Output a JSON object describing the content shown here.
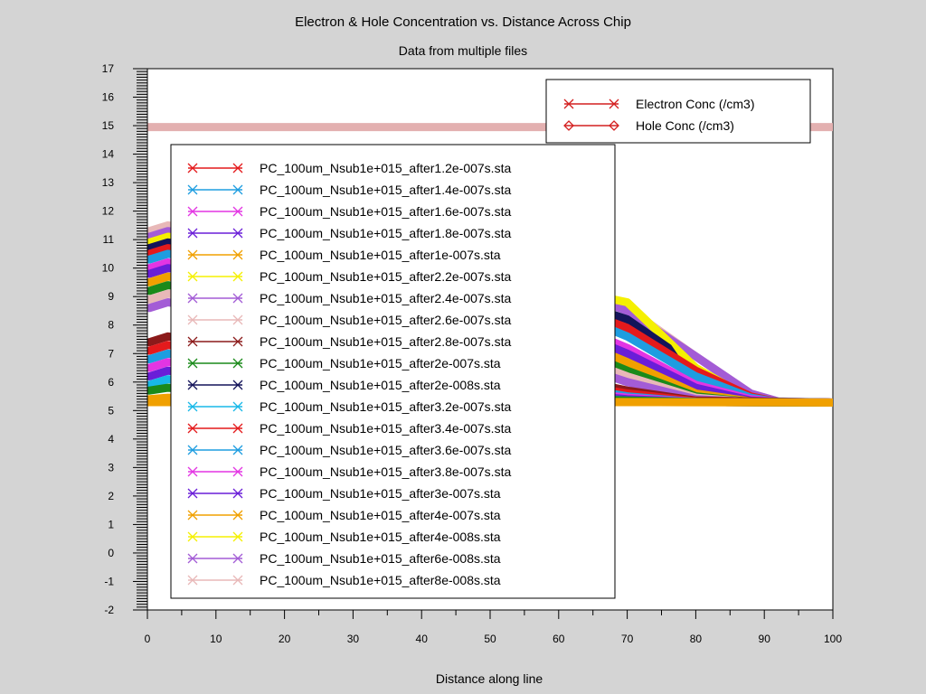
{
  "chart_data": {
    "type": "line",
    "title": "Electron & Hole Concentration vs. Distance Across Chip",
    "subtitle": "Data from multiple files",
    "xlabel": "Distance along line",
    "ylabel": "",
    "xlim": [
      0,
      100
    ],
    "ylim": [
      -2,
      17
    ],
    "x_ticks": [
      "0",
      "10",
      "20",
      "30",
      "40",
      "50",
      "60",
      "70",
      "80",
      "90",
      "100"
    ],
    "y_ticks": [
      "-2",
      "-1",
      "0",
      "1",
      "2",
      "3",
      "4",
      "5",
      "6",
      "7",
      "8",
      "9",
      "10",
      "11",
      "12",
      "13",
      "14",
      "15",
      "16",
      "17"
    ],
    "grid": false,
    "hole_level": 14.95,
    "background_level": 5.28,
    "marker_legend": {
      "placement": "top-right",
      "items": [
        {
          "label": "Electron Conc (/cm3)",
          "marker": "x",
          "color": "#d42020"
        },
        {
          "label": "Hole Conc (/cm3)",
          "marker": "diamond",
          "color": "#d42020"
        }
      ]
    },
    "file_legend": {
      "placement": "center-left",
      "items": [
        {
          "label": "PC_100um_Nsub1e+015_after1.2e-007s.sta",
          "color": "#e41a1c"
        },
        {
          "label": "PC_100um_Nsub1e+015_after1.4e-007s.sta",
          "color": "#1e9de0"
        },
        {
          "label": "PC_100um_Nsub1e+015_after1.6e-007s.sta",
          "color": "#e335e3"
        },
        {
          "label": "PC_100um_Nsub1e+015_after1.8e-007s.sta",
          "color": "#6a1ed8"
        },
        {
          "label": "PC_100um_Nsub1e+015_after1e-007s.sta",
          "color": "#f0a000"
        },
        {
          "label": "PC_100um_Nsub1e+015_after2.2e-007s.sta",
          "color": "#f5f000"
        },
        {
          "label": "PC_100um_Nsub1e+015_after2.4e-007s.sta",
          "color": "#a35cd6"
        },
        {
          "label": "PC_100um_Nsub1e+015_after2.6e-007s.sta",
          "color": "#e8b8b8"
        },
        {
          "label": "PC_100um_Nsub1e+015_after2.8e-007s.sta",
          "color": "#8b1a1a"
        },
        {
          "label": "PC_100um_Nsub1e+015_after2e-007s.sta",
          "color": "#1a8a1a"
        },
        {
          "label": "PC_100um_Nsub1e+015_after2e-008s.sta",
          "color": "#14145a"
        },
        {
          "label": "PC_100um_Nsub1e+015_after3.2e-007s.sta",
          "color": "#18b8e8"
        },
        {
          "label": "PC_100um_Nsub1e+015_after3.4e-007s.sta",
          "color": "#e41a1c"
        },
        {
          "label": "PC_100um_Nsub1e+015_after3.6e-007s.sta",
          "color": "#1e9de0"
        },
        {
          "label": "PC_100um_Nsub1e+015_after3.8e-007s.sta",
          "color": "#e335e3"
        },
        {
          "label": "PC_100um_Nsub1e+015_after3e-007s.sta",
          "color": "#6a1ed8"
        },
        {
          "label": "PC_100um_Nsub1e+015_after4e-007s.sta",
          "color": "#f0a000"
        },
        {
          "label": "PC_100um_Nsub1e+015_after4e-008s.sta",
          "color": "#f5f000"
        },
        {
          "label": "PC_100um_Nsub1e+015_after6e-008s.sta",
          "color": "#a35cd6"
        },
        {
          "label": "PC_100um_Nsub1e+015_after8e-008s.sta",
          "color": "#e8b8b8"
        }
      ]
    },
    "series": [
      {
        "color": "#e8b8b8",
        "values": [
          [
            0.3,
            11.3
          ],
          [
            3,
            11.5
          ],
          [
            6,
            11.4
          ],
          [
            10,
            11.2
          ],
          [
            20,
            10.9
          ],
          [
            35,
            10.5
          ],
          [
            50,
            10.0
          ],
          [
            60,
            9.6
          ],
          [
            70,
            8.6
          ],
          [
            80,
            6.9
          ],
          [
            88,
            5.6
          ],
          [
            92,
            5.32
          ],
          [
            100,
            5.28
          ]
        ]
      },
      {
        "color": "#a35cd6",
        "values": [
          [
            0.3,
            11.1
          ],
          [
            3,
            11.3
          ],
          [
            6,
            11.2
          ],
          [
            10,
            11.0
          ],
          [
            20,
            10.7
          ],
          [
            35,
            10.3
          ],
          [
            50,
            9.8
          ],
          [
            60,
            9.4
          ],
          [
            70,
            8.5
          ],
          [
            80,
            6.9
          ],
          [
            88,
            5.6
          ],
          [
            92,
            5.32
          ],
          [
            100,
            5.28
          ]
        ]
      },
      {
        "color": "#f5f000",
        "values": [
          [
            0.3,
            10.9
          ],
          [
            3,
            11.1
          ],
          [
            6,
            11.0
          ],
          [
            10,
            10.8
          ],
          [
            20,
            10.5
          ],
          [
            35,
            10.1
          ],
          [
            50,
            9.6
          ],
          [
            60,
            9.3
          ],
          [
            70,
            8.8
          ],
          [
            80,
            6.5
          ],
          [
            88,
            5.4
          ],
          [
            92,
            5.3
          ],
          [
            100,
            5.28
          ]
        ]
      },
      {
        "color": "#14145a",
        "values": [
          [
            0.3,
            10.7
          ],
          [
            3,
            10.9
          ],
          [
            6,
            10.8
          ],
          [
            10,
            10.6
          ],
          [
            20,
            10.3
          ],
          [
            35,
            9.9
          ],
          [
            50,
            9.4
          ],
          [
            60,
            9.0
          ],
          [
            70,
            8.2
          ],
          [
            76,
            7.2
          ],
          [
            80,
            5.8
          ],
          [
            82,
            5.4
          ],
          [
            90,
            5.3
          ],
          [
            100,
            5.28
          ]
        ]
      },
      {
        "color": "#e41a1c",
        "values": [
          [
            0.3,
            10.5
          ],
          [
            3,
            10.7
          ],
          [
            6,
            10.6
          ],
          [
            10,
            10.4
          ],
          [
            20,
            10.1
          ],
          [
            35,
            9.7
          ],
          [
            50,
            9.2
          ],
          [
            60,
            8.8
          ],
          [
            70,
            7.9
          ],
          [
            80,
            6.4
          ],
          [
            88,
            5.5
          ],
          [
            92,
            5.3
          ],
          [
            100,
            5.28
          ]
        ]
      },
      {
        "color": "#1e9de0",
        "values": [
          [
            0.3,
            10.3
          ],
          [
            3,
            10.5
          ],
          [
            6,
            10.4
          ],
          [
            10,
            10.2
          ],
          [
            20,
            9.9
          ],
          [
            35,
            9.5
          ],
          [
            50,
            9.0
          ],
          [
            60,
            8.6
          ],
          [
            70,
            7.6
          ],
          [
            80,
            6.2
          ],
          [
            88,
            5.45
          ],
          [
            92,
            5.3
          ],
          [
            100,
            5.28
          ]
        ]
      },
      {
        "color": "#e335e3",
        "values": [
          [
            0.3,
            10.0
          ],
          [
            3,
            10.2
          ],
          [
            6,
            10.1
          ],
          [
            10,
            9.9
          ],
          [
            20,
            9.6
          ],
          [
            35,
            9.2
          ],
          [
            50,
            8.7
          ],
          [
            60,
            8.2
          ],
          [
            70,
            7.2
          ],
          [
            80,
            5.9
          ],
          [
            88,
            5.4
          ],
          [
            92,
            5.3
          ],
          [
            100,
            5.28
          ]
        ]
      },
      {
        "color": "#6a1ed8",
        "values": [
          [
            0.3,
            9.8
          ],
          [
            3,
            10.0
          ],
          [
            6,
            9.9
          ],
          [
            10,
            9.7
          ],
          [
            20,
            9.4
          ],
          [
            35,
            9.0
          ],
          [
            50,
            8.5
          ],
          [
            60,
            8.0
          ],
          [
            70,
            7.0
          ],
          [
            80,
            5.8
          ],
          [
            88,
            5.35
          ],
          [
            92,
            5.3
          ],
          [
            100,
            5.28
          ]
        ]
      },
      {
        "color": "#f0a000",
        "values": [
          [
            0.3,
            9.5
          ],
          [
            3,
            9.7
          ],
          [
            6,
            9.6
          ],
          [
            10,
            9.4
          ],
          [
            20,
            9.1
          ],
          [
            35,
            8.7
          ],
          [
            50,
            8.2
          ],
          [
            60,
            7.7
          ],
          [
            70,
            6.7
          ],
          [
            80,
            5.6
          ],
          [
            88,
            5.32
          ],
          [
            92,
            5.3
          ],
          [
            100,
            5.28
          ]
        ]
      },
      {
        "color": "#1a8a1a",
        "values": [
          [
            0.3,
            9.2
          ],
          [
            3,
            9.4
          ],
          [
            6,
            9.3
          ],
          [
            10,
            9.1
          ],
          [
            20,
            8.8
          ],
          [
            35,
            8.4
          ],
          [
            50,
            7.9
          ],
          [
            60,
            7.4
          ],
          [
            70,
            6.4
          ],
          [
            80,
            5.5
          ],
          [
            88,
            5.3
          ],
          [
            100,
            5.28
          ]
        ]
      },
      {
        "color": "#e8b8b8",
        "values": [
          [
            0.3,
            8.9
          ],
          [
            3,
            9.1
          ],
          [
            6,
            9.0
          ],
          [
            10,
            8.8
          ],
          [
            20,
            8.5
          ],
          [
            35,
            8.1
          ],
          [
            50,
            7.6
          ],
          [
            60,
            7.1
          ],
          [
            70,
            6.2
          ],
          [
            80,
            5.45
          ],
          [
            88,
            5.3
          ],
          [
            100,
            5.28
          ]
        ]
      },
      {
        "color": "#a35cd6",
        "values": [
          [
            0.3,
            8.6
          ],
          [
            3,
            8.8
          ],
          [
            6,
            8.7
          ],
          [
            10,
            8.5
          ],
          [
            20,
            8.2
          ],
          [
            35,
            7.8
          ],
          [
            50,
            7.3
          ],
          [
            60,
            6.8
          ],
          [
            70,
            6.0
          ],
          [
            80,
            5.4
          ],
          [
            88,
            5.3
          ],
          [
            100,
            5.28
          ]
        ]
      },
      {
        "color": "#8b1a1a",
        "values": [
          [
            0.3,
            7.4
          ],
          [
            3,
            7.6
          ],
          [
            6,
            7.5
          ],
          [
            10,
            7.3
          ],
          [
            20,
            7.1
          ],
          [
            35,
            6.8
          ],
          [
            50,
            6.5
          ],
          [
            60,
            6.2
          ],
          [
            70,
            5.7
          ],
          [
            80,
            5.35
          ],
          [
            100,
            5.28
          ]
        ]
      },
      {
        "color": "#e41a1c",
        "values": [
          [
            0.3,
            7.1
          ],
          [
            3,
            7.3
          ],
          [
            6,
            7.2
          ],
          [
            10,
            7.0
          ],
          [
            20,
            6.8
          ],
          [
            35,
            6.6
          ],
          [
            50,
            6.3
          ],
          [
            60,
            6.0
          ],
          [
            70,
            5.6
          ],
          [
            80,
            5.32
          ],
          [
            100,
            5.28
          ]
        ]
      },
      {
        "color": "#1e9de0",
        "values": [
          [
            0.3,
            6.8
          ],
          [
            3,
            7.0
          ],
          [
            6,
            6.9
          ],
          [
            10,
            6.7
          ],
          [
            20,
            6.5
          ],
          [
            35,
            6.3
          ],
          [
            50,
            6.1
          ],
          [
            60,
            5.9
          ],
          [
            70,
            5.5
          ],
          [
            80,
            5.3
          ],
          [
            100,
            5.28
          ]
        ]
      },
      {
        "color": "#e335e3",
        "values": [
          [
            0.3,
            6.5
          ],
          [
            3,
            6.7
          ],
          [
            6,
            6.6
          ],
          [
            10,
            6.4
          ],
          [
            20,
            6.3
          ],
          [
            35,
            6.1
          ],
          [
            50,
            5.9
          ],
          [
            60,
            5.7
          ],
          [
            70,
            5.45
          ],
          [
            80,
            5.3
          ],
          [
            100,
            5.28
          ]
        ]
      },
      {
        "color": "#6a1ed8",
        "values": [
          [
            0.3,
            6.2
          ],
          [
            3,
            6.4
          ],
          [
            6,
            6.3
          ],
          [
            10,
            6.2
          ],
          [
            20,
            6.0
          ],
          [
            35,
            5.9
          ],
          [
            50,
            5.7
          ],
          [
            60,
            5.6
          ],
          [
            70,
            5.4
          ],
          [
            80,
            5.3
          ],
          [
            100,
            5.28
          ]
        ]
      },
      {
        "color": "#18b8e8",
        "values": [
          [
            0.3,
            5.9
          ],
          [
            3,
            6.1
          ],
          [
            6,
            6.0
          ],
          [
            10,
            5.9
          ],
          [
            20,
            5.8
          ],
          [
            35,
            5.7
          ],
          [
            50,
            5.6
          ],
          [
            60,
            5.5
          ],
          [
            70,
            5.35
          ],
          [
            80,
            5.3
          ],
          [
            100,
            5.28
          ]
        ]
      },
      {
        "color": "#1a8a1a",
        "values": [
          [
            0.3,
            5.7
          ],
          [
            3,
            5.8
          ],
          [
            6,
            5.75
          ],
          [
            10,
            5.7
          ],
          [
            20,
            5.6
          ],
          [
            35,
            5.55
          ],
          [
            50,
            5.5
          ],
          [
            60,
            5.45
          ],
          [
            70,
            5.35
          ],
          [
            80,
            5.3
          ],
          [
            100,
            5.28
          ]
        ]
      },
      {
        "color": "#f0a000",
        "values": [
          [
            0.3,
            5.4
          ],
          [
            3,
            5.45
          ],
          [
            10,
            5.4
          ],
          [
            30,
            5.35
          ],
          [
            50,
            5.32
          ],
          [
            70,
            5.3
          ],
          [
            100,
            5.28
          ]
        ]
      }
    ]
  }
}
